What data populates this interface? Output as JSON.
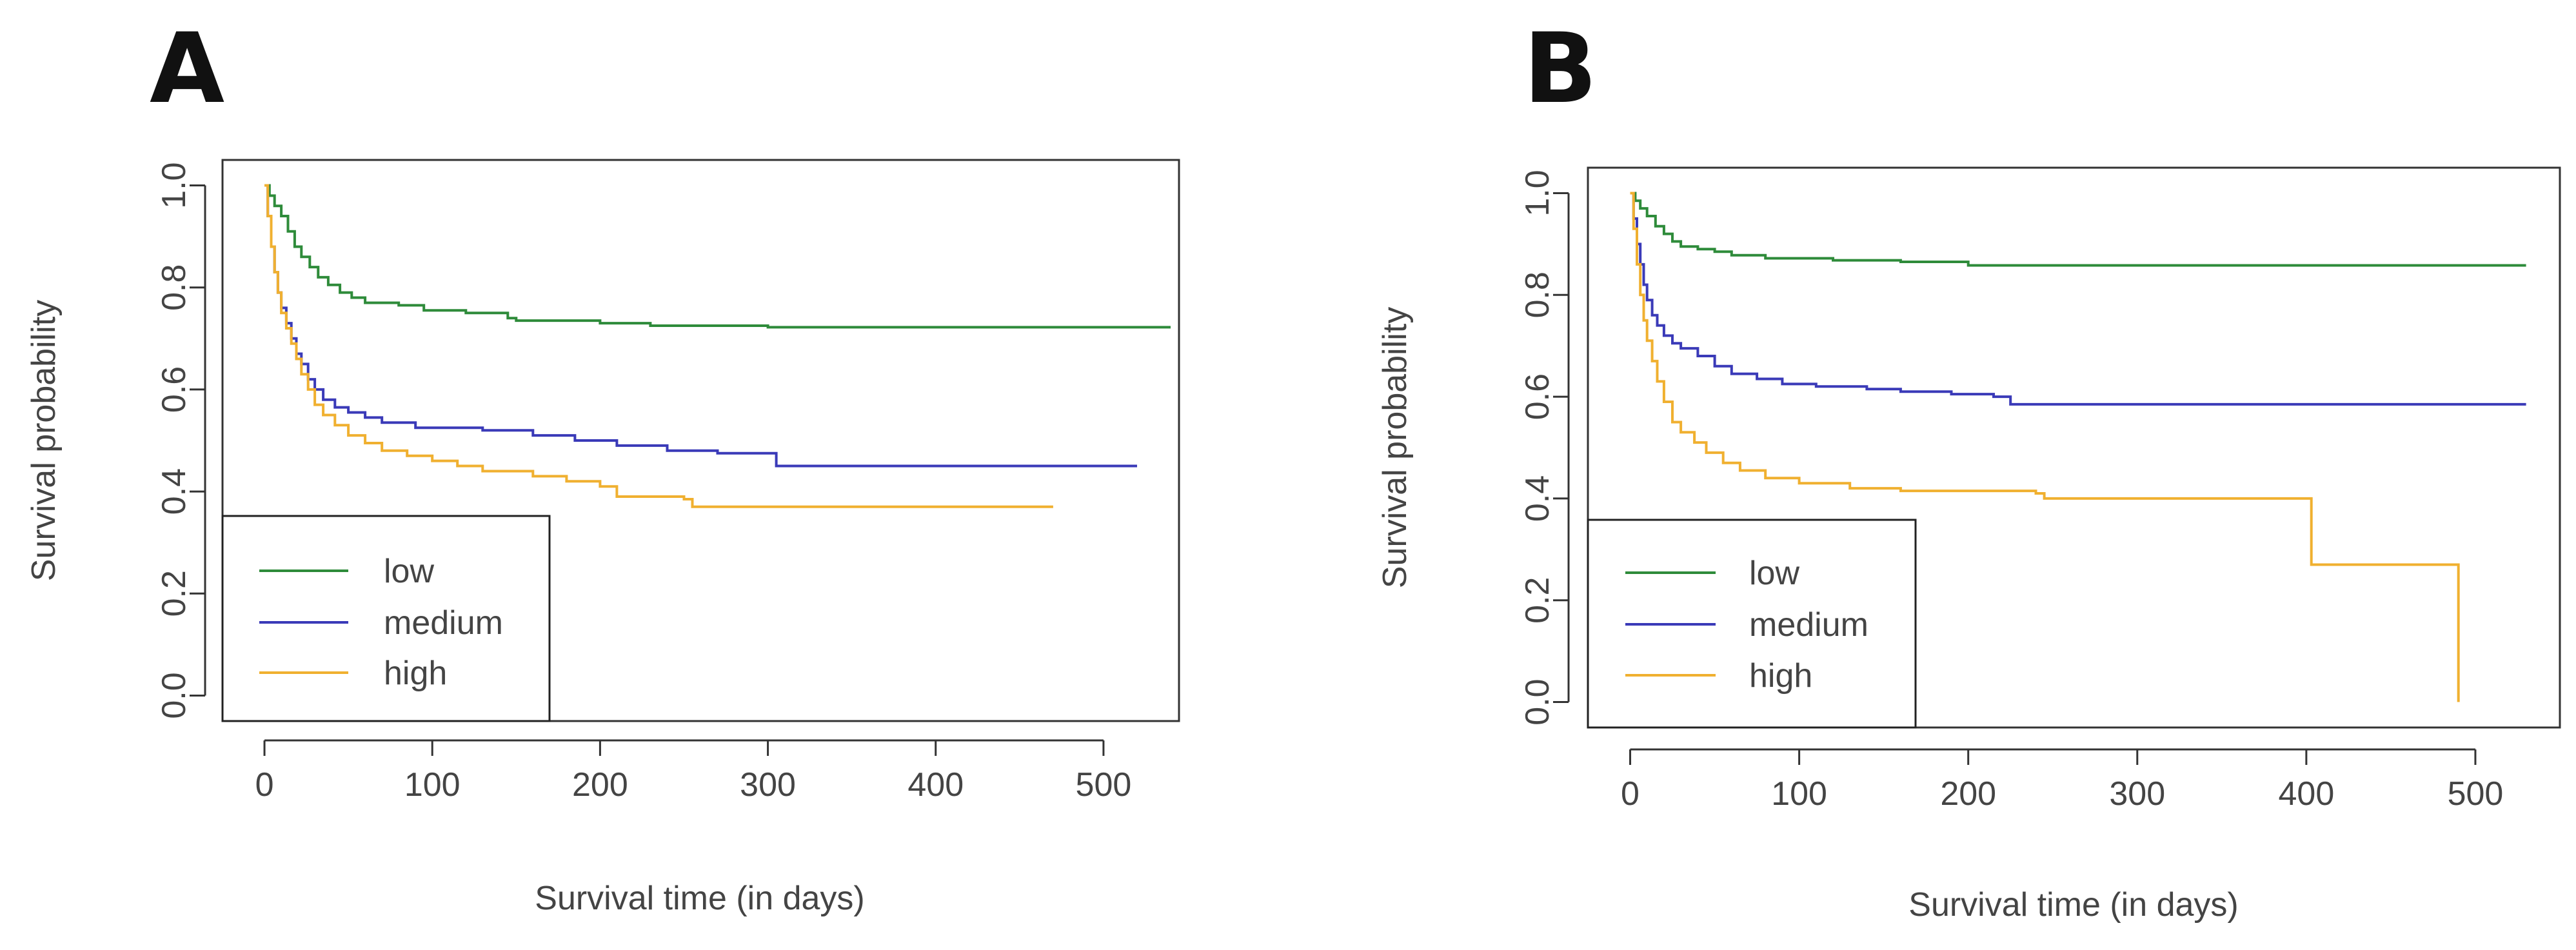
{
  "chart_data": [
    {
      "type": "line",
      "panel_label": "A",
      "title": "",
      "xlabel": "Survival time (in days)",
      "ylabel": "Survival probability",
      "xlim": [
        -25,
        545
      ],
      "ylim": [
        -0.05,
        1.05
      ],
      "xticks": [
        0,
        100,
        200,
        300,
        400,
        500
      ],
      "xtick_labels": [
        "0",
        "100",
        "200",
        "300",
        "400",
        "500"
      ],
      "yticks": [
        0.0,
        0.2,
        0.4,
        0.6,
        0.8,
        1.0
      ],
      "ytick_labels": [
        "0.0",
        "0.2",
        "0.4",
        "0.6",
        "0.8",
        "1.0"
      ],
      "grid": false,
      "legend_position": "bottom-left",
      "series": [
        {
          "name": "low",
          "color": "#2e8b3a",
          "points": [
            [
              0,
              1.0
            ],
            [
              3,
              0.98
            ],
            [
              6,
              0.96
            ],
            [
              10,
              0.94
            ],
            [
              14,
              0.91
            ],
            [
              18,
              0.88
            ],
            [
              22,
              0.86
            ],
            [
              27,
              0.84
            ],
            [
              32,
              0.82
            ],
            [
              38,
              0.805
            ],
            [
              45,
              0.79
            ],
            [
              52,
              0.78
            ],
            [
              60,
              0.77
            ],
            [
              80,
              0.765
            ],
            [
              95,
              0.755
            ],
            [
              120,
              0.75
            ],
            [
              145,
              0.74
            ],
            [
              150,
              0.735
            ],
            [
              200,
              0.73
            ],
            [
              230,
              0.725
            ],
            [
              300,
              0.722
            ],
            [
              540,
              0.722
            ]
          ]
        },
        {
          "name": "medium",
          "color": "#3a3ab8",
          "points": [
            [
              0,
              1.0
            ],
            [
              2,
              0.94
            ],
            [
              4,
              0.88
            ],
            [
              6,
              0.83
            ],
            [
              8,
              0.79
            ],
            [
              10,
              0.76
            ],
            [
              13,
              0.73
            ],
            [
              16,
              0.7
            ],
            [
              19,
              0.67
            ],
            [
              22,
              0.65
            ],
            [
              26,
              0.62
            ],
            [
              30,
              0.6
            ],
            [
              35,
              0.58
            ],
            [
              42,
              0.565
            ],
            [
              50,
              0.555
            ],
            [
              60,
              0.545
            ],
            [
              70,
              0.535
            ],
            [
              90,
              0.525
            ],
            [
              130,
              0.52
            ],
            [
              160,
              0.51
            ],
            [
              185,
              0.5
            ],
            [
              210,
              0.49
            ],
            [
              240,
              0.48
            ],
            [
              270,
              0.475
            ],
            [
              300,
              0.475
            ],
            [
              305,
              0.45
            ],
            [
              520,
              0.45
            ]
          ]
        },
        {
          "name": "high",
          "color": "#f0b030",
          "points": [
            [
              0,
              1.0
            ],
            [
              2,
              0.94
            ],
            [
              4,
              0.88
            ],
            [
              6,
              0.83
            ],
            [
              8,
              0.79
            ],
            [
              10,
              0.75
            ],
            [
              13,
              0.72
            ],
            [
              16,
              0.69
            ],
            [
              19,
              0.66
            ],
            [
              22,
              0.63
            ],
            [
              26,
              0.6
            ],
            [
              30,
              0.57
            ],
            [
              35,
              0.55
            ],
            [
              42,
              0.53
            ],
            [
              50,
              0.51
            ],
            [
              60,
              0.495
            ],
            [
              70,
              0.48
            ],
            [
              85,
              0.47
            ],
            [
              100,
              0.46
            ],
            [
              115,
              0.45
            ],
            [
              130,
              0.44
            ],
            [
              160,
              0.43
            ],
            [
              180,
              0.42
            ],
            [
              200,
              0.41
            ],
            [
              210,
              0.39
            ],
            [
              250,
              0.385
            ],
            [
              255,
              0.37
            ],
            [
              470,
              0.37
            ]
          ]
        }
      ]
    },
    {
      "type": "line",
      "panel_label": "B",
      "title": "",
      "xlabel": "Survival time (in days)",
      "ylabel": "Survival probability",
      "xlim": [
        -25,
        550
      ],
      "ylim": [
        -0.05,
        1.05
      ],
      "xticks": [
        0,
        100,
        200,
        300,
        400,
        500
      ],
      "xtick_labels": [
        "0",
        "100",
        "200",
        "300",
        "400",
        "500"
      ],
      "yticks": [
        0.0,
        0.2,
        0.4,
        0.6,
        0.8,
        1.0
      ],
      "ytick_labels": [
        "0.0",
        "0.2",
        "0.4",
        "0.6",
        "0.8",
        "1.0"
      ],
      "grid": false,
      "legend_position": "bottom-left",
      "series": [
        {
          "name": "low",
          "color": "#2e8b3a",
          "points": [
            [
              0,
              1.0
            ],
            [
              3,
              0.985
            ],
            [
              6,
              0.97
            ],
            [
              10,
              0.955
            ],
            [
              15,
              0.935
            ],
            [
              20,
              0.92
            ],
            [
              25,
              0.905
            ],
            [
              30,
              0.895
            ],
            [
              40,
              0.89
            ],
            [
              50,
              0.885
            ],
            [
              60,
              0.878
            ],
            [
              80,
              0.872
            ],
            [
              120,
              0.868
            ],
            [
              160,
              0.865
            ],
            [
              200,
              0.858
            ],
            [
              530,
              0.858
            ]
          ]
        },
        {
          "name": "medium",
          "color": "#3a3ab8",
          "points": [
            [
              0,
              1.0
            ],
            [
              2,
              0.95
            ],
            [
              4,
              0.9
            ],
            [
              6,
              0.86
            ],
            [
              8,
              0.82
            ],
            [
              10,
              0.79
            ],
            [
              13,
              0.76
            ],
            [
              16,
              0.74
            ],
            [
              20,
              0.72
            ],
            [
              25,
              0.705
            ],
            [
              30,
              0.695
            ],
            [
              40,
              0.68
            ],
            [
              50,
              0.66
            ],
            [
              60,
              0.645
            ],
            [
              75,
              0.635
            ],
            [
              90,
              0.625
            ],
            [
              110,
              0.62
            ],
            [
              140,
              0.615
            ],
            [
              160,
              0.61
            ],
            [
              190,
              0.605
            ],
            [
              215,
              0.6
            ],
            [
              225,
              0.585
            ],
            [
              530,
              0.585
            ]
          ]
        },
        {
          "name": "high",
          "color": "#f0b030",
          "points": [
            [
              0,
              1.0
            ],
            [
              2,
              0.93
            ],
            [
              4,
              0.86
            ],
            [
              6,
              0.8
            ],
            [
              8,
              0.75
            ],
            [
              10,
              0.71
            ],
            [
              13,
              0.67
            ],
            [
              16,
              0.63
            ],
            [
              20,
              0.59
            ],
            [
              25,
              0.55
            ],
            [
              30,
              0.53
            ],
            [
              38,
              0.51
            ],
            [
              45,
              0.49
            ],
            [
              55,
              0.47
            ],
            [
              65,
              0.455
            ],
            [
              80,
              0.44
            ],
            [
              100,
              0.43
            ],
            [
              130,
              0.42
            ],
            [
              160,
              0.415
            ],
            [
              200,
              0.415
            ],
            [
              240,
              0.41
            ],
            [
              245,
              0.4
            ],
            [
              400,
              0.4
            ],
            [
              403,
              0.27
            ],
            [
              487,
              0.27
            ],
            [
              490,
              0.0
            ]
          ]
        }
      ]
    }
  ]
}
